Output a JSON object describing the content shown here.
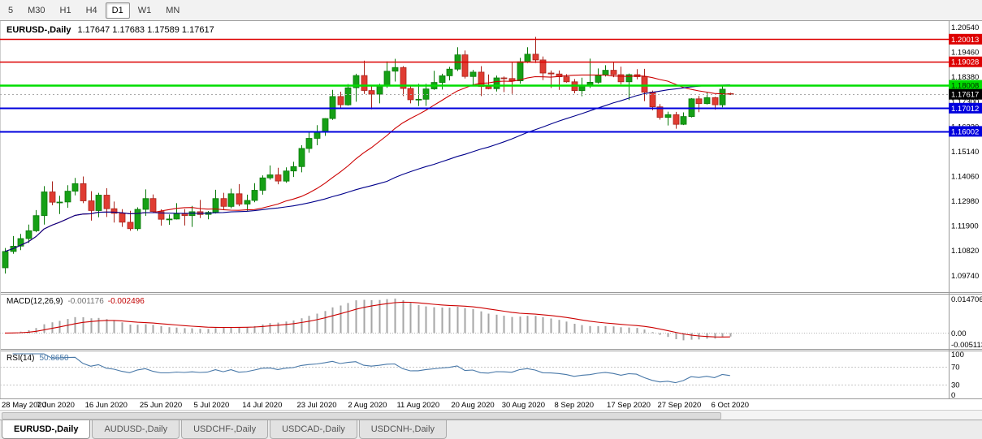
{
  "toolbar": {
    "buttons": [
      {
        "label": "5",
        "active": false
      },
      {
        "label": "M30",
        "active": false
      },
      {
        "label": "H1",
        "active": false
      },
      {
        "label": "H4",
        "active": false
      },
      {
        "label": "D1",
        "active": true
      },
      {
        "label": "W1",
        "active": false
      },
      {
        "label": "MN",
        "active": false
      }
    ]
  },
  "chart": {
    "symbol_label": "EURUSD-,Daily",
    "ohlc_label": "1.17647 1.17683 1.17589 1.17617"
  },
  "price_scale": {
    "badges": [
      {
        "text": "1.20013",
        "price": 1.20013,
        "bg": "#dd0000",
        "fg": "#ffffff"
      },
      {
        "text": "1.19028",
        "price": 1.19028,
        "bg": "#dd0000",
        "fg": "#ffffff"
      },
      {
        "text": "1.18008",
        "price": 1.18008,
        "bg": "#00dd00",
        "fg": "#002b00"
      },
      {
        "text": "1.17617",
        "price": 1.17617,
        "bg": "#000000",
        "fg": "#ffffff"
      },
      {
        "text": "1.17012",
        "price": 1.17012,
        "bg": "#0000dd",
        "fg": "#ffffff"
      },
      {
        "text": "1.16002",
        "price": 1.16002,
        "bg": "#0000dd",
        "fg": "#ffffff"
      }
    ]
  },
  "chart_data": {
    "type": "candlestick",
    "title": "EURUSD-,Daily",
    "last_ohlc": {
      "open": "1.17647",
      "high": "1.17683",
      "low": "1.17589",
      "close": "1.17617"
    },
    "current_price": 1.17617,
    "candle_colors": {
      "bull": "#16a016",
      "bull_border": "#0b7a0b",
      "bear": "#e03c32",
      "bear_border": "#a8231b"
    },
    "candles": [
      [
        1.1007,
        1.1093,
        1.0982,
        1.1078
      ],
      [
        1.1078,
        1.1145,
        1.1068,
        1.1101
      ],
      [
        1.1101,
        1.1154,
        1.1084,
        1.1134
      ],
      [
        1.1134,
        1.1195,
        1.1115,
        1.1168
      ],
      [
        1.1168,
        1.1258,
        1.1162,
        1.1234
      ],
      [
        1.1234,
        1.1362,
        1.1195,
        1.1337
      ],
      [
        1.1337,
        1.1383,
        1.1279,
        1.1292
      ],
      [
        1.1292,
        1.132,
        1.1241,
        1.1293
      ],
      [
        1.1293,
        1.1366,
        1.1268,
        1.134
      ],
      [
        1.134,
        1.1398,
        1.1322,
        1.1373
      ],
      [
        1.1373,
        1.1404,
        1.1288,
        1.1298
      ],
      [
        1.1298,
        1.134,
        1.1212,
        1.1256
      ],
      [
        1.1256,
        1.1333,
        1.1227,
        1.1323
      ],
      [
        1.1323,
        1.1353,
        1.1228,
        1.1264
      ],
      [
        1.1264,
        1.1295,
        1.1204,
        1.1244
      ],
      [
        1.1244,
        1.1262,
        1.1185,
        1.1205
      ],
      [
        1.1205,
        1.1255,
        1.1168,
        1.1177
      ],
      [
        1.1177,
        1.127,
        1.1168,
        1.1261
      ],
      [
        1.1261,
        1.1348,
        1.1233,
        1.1308
      ],
      [
        1.1308,
        1.1326,
        1.1245,
        1.1252
      ],
      [
        1.1252,
        1.1261,
        1.119,
        1.1218
      ],
      [
        1.1218,
        1.1239,
        1.1194,
        1.1219
      ],
      [
        1.1219,
        1.1288,
        1.1217,
        1.1242
      ],
      [
        1.1242,
        1.1262,
        1.1191,
        1.1234
      ],
      [
        1.1234,
        1.1276,
        1.1185,
        1.1251
      ],
      [
        1.1251,
        1.1302,
        1.1223,
        1.1239
      ],
      [
        1.1239,
        1.1254,
        1.1218,
        1.1248
      ],
      [
        1.1248,
        1.1346,
        1.1243,
        1.1308
      ],
      [
        1.1308,
        1.1333,
        1.1259,
        1.1274
      ],
      [
        1.1274,
        1.1351,
        1.1266,
        1.1329
      ],
      [
        1.1329,
        1.1371,
        1.1275,
        1.1284
      ],
      [
        1.1284,
        1.1325,
        1.1255,
        1.13
      ],
      [
        1.13,
        1.1375,
        1.1292,
        1.1344
      ],
      [
        1.1344,
        1.1409,
        1.1325,
        1.1398
      ],
      [
        1.1398,
        1.1452,
        1.139,
        1.1411
      ],
      [
        1.1411,
        1.1442,
        1.137,
        1.1384
      ],
      [
        1.1384,
        1.1444,
        1.1377,
        1.1428
      ],
      [
        1.1428,
        1.1468,
        1.1402,
        1.1447
      ],
      [
        1.1447,
        1.154,
        1.1422,
        1.1526
      ],
      [
        1.1526,
        1.1601,
        1.1507,
        1.157
      ],
      [
        1.157,
        1.1627,
        1.154,
        1.1596
      ],
      [
        1.1596,
        1.1658,
        1.1581,
        1.1656
      ],
      [
        1.1656,
        1.1781,
        1.165,
        1.1752
      ],
      [
        1.1752,
        1.1773,
        1.17,
        1.1716
      ],
      [
        1.1716,
        1.1806,
        1.1712,
        1.179
      ],
      [
        1.179,
        1.1851,
        1.1729,
        1.1843
      ],
      [
        1.1843,
        1.1908,
        1.1763,
        1.1778
      ],
      [
        1.1778,
        1.1797,
        1.1696,
        1.1762
      ],
      [
        1.1762,
        1.1807,
        1.1722,
        1.1802
      ],
      [
        1.1802,
        1.1905,
        1.179,
        1.1862
      ],
      [
        1.1862,
        1.1916,
        1.1817,
        1.1878
      ],
      [
        1.1878,
        1.1884,
        1.1754,
        1.1787
      ],
      [
        1.1787,
        1.1798,
        1.1722,
        1.1738
      ],
      [
        1.1738,
        1.1807,
        1.171,
        1.174
      ],
      [
        1.174,
        1.1807,
        1.1711,
        1.1785
      ],
      [
        1.1785,
        1.1864,
        1.1781,
        1.1813
      ],
      [
        1.1813,
        1.1851,
        1.1782,
        1.1842
      ],
      [
        1.1842,
        1.1881,
        1.1822,
        1.1871
      ],
      [
        1.1871,
        1.1966,
        1.1863,
        1.1933
      ],
      [
        1.1933,
        1.1952,
        1.183,
        1.1839
      ],
      [
        1.1839,
        1.1868,
        1.1803,
        1.1858
      ],
      [
        1.1858,
        1.1884,
        1.1754,
        1.1796
      ],
      [
        1.1796,
        1.1848,
        1.1783,
        1.1786
      ],
      [
        1.1786,
        1.1843,
        1.1774,
        1.1833
      ],
      [
        1.1833,
        1.1839,
        1.1771,
        1.183
      ],
      [
        1.183,
        1.1902,
        1.1763,
        1.182
      ],
      [
        1.182,
        1.192,
        1.1808,
        1.1903
      ],
      [
        1.1903,
        1.1966,
        1.1898,
        1.1936
      ],
      [
        1.1936,
        1.2011,
        1.1898,
        1.1911
      ],
      [
        1.1911,
        1.1926,
        1.1823,
        1.1854
      ],
      [
        1.1854,
        1.1865,
        1.1789,
        1.185
      ],
      [
        1.185,
        1.1865,
        1.1781,
        1.1838
      ],
      [
        1.1838,
        1.1849,
        1.1812,
        1.1816
      ],
      [
        1.1816,
        1.1828,
        1.1766,
        1.1778
      ],
      [
        1.1778,
        1.1834,
        1.1753,
        1.1802
      ],
      [
        1.1802,
        1.1917,
        1.1789,
        1.1814
      ],
      [
        1.1814,
        1.1874,
        1.1808,
        1.1845
      ],
      [
        1.1845,
        1.1888,
        1.1839,
        1.1866
      ],
      [
        1.1866,
        1.19,
        1.1836,
        1.1847
      ],
      [
        1.1847,
        1.1882,
        1.1805,
        1.1816
      ],
      [
        1.1816,
        1.1852,
        1.1737,
        1.1847
      ],
      [
        1.1847,
        1.1871,
        1.1827,
        1.1838
      ],
      [
        1.1838,
        1.1872,
        1.1732,
        1.1771
      ],
      [
        1.1771,
        1.1778,
        1.1692,
        1.1707
      ],
      [
        1.1707,
        1.1719,
        1.1651,
        1.1661
      ],
      [
        1.1661,
        1.1686,
        1.1626,
        1.1673
      ],
      [
        1.1673,
        1.1685,
        1.1612,
        1.1631
      ],
      [
        1.1631,
        1.1683,
        1.1628,
        1.1665
      ],
      [
        1.1665,
        1.1745,
        1.1661,
        1.1742
      ],
      [
        1.1742,
        1.1755,
        1.1684,
        1.1721
      ],
      [
        1.1721,
        1.1769,
        1.1717,
        1.1747
      ],
      [
        1.1747,
        1.1751,
        1.1695,
        1.1716
      ],
      [
        1.1716,
        1.1797,
        1.1705,
        1.1784
      ],
      [
        1.17647,
        1.17683,
        1.17589,
        1.17617
      ]
    ],
    "y_ticks": [
      {
        "text": "1.20540",
        "price": 1.2054
      },
      {
        "text": "1.19460",
        "price": 1.1946
      },
      {
        "text": "1.18380",
        "price": 1.1838
      },
      {
        "text": "1.17300",
        "price": 1.173
      },
      {
        "text": "1.16220",
        "price": 1.1622
      },
      {
        "text": "1.15140",
        "price": 1.1514
      },
      {
        "text": "1.14060",
        "price": 1.1406
      },
      {
        "text": "1.12980",
        "price": 1.1298
      },
      {
        "text": "1.11900",
        "price": 1.119
      },
      {
        "text": "1.10820",
        "price": 1.1082
      },
      {
        "text": "1.09740",
        "price": 1.0974
      }
    ],
    "x_ticks": [
      {
        "bar": 0,
        "label": "28 May 2020"
      },
      {
        "bar": 6.5,
        "label": "7 Jun 2020"
      },
      {
        "bar": 13,
        "label": "16 Jun 2020"
      },
      {
        "bar": 20,
        "label": "25 Jun 2020"
      },
      {
        "bar": 26.5,
        "label": "5 Jul 2020"
      },
      {
        "bar": 33,
        "label": "14 Jul 2020"
      },
      {
        "bar": 40,
        "label": "23 Jul 2020"
      },
      {
        "bar": 46.5,
        "label": "2 Aug 2020"
      },
      {
        "bar": 53,
        "label": "11 Aug 2020"
      },
      {
        "bar": 60,
        "label": "20 Aug 2020"
      },
      {
        "bar": 66.5,
        "label": "30 Aug 2020"
      },
      {
        "bar": 73,
        "label": "8 Sep 2020"
      },
      {
        "bar": 80,
        "label": "17 Sep 2020"
      },
      {
        "bar": 86.5,
        "label": "27 Sep 2020"
      },
      {
        "bar": 93,
        "label": "6 Oct 2020"
      }
    ],
    "horizontal_lines": [
      {
        "price": 1.20013,
        "color": "#dd0000",
        "width": 1.4
      },
      {
        "price": 1.19028,
        "color": "#dd0000",
        "width": 1.4
      },
      {
        "price": 1.18008,
        "color": "#00dd00",
        "width": 2.4
      },
      {
        "price": 1.17012,
        "color": "#0000dd",
        "width": 2
      },
      {
        "price": 1.16002,
        "color": "#0000dd",
        "width": 2
      }
    ],
    "moving_averages": [
      {
        "type": "sma",
        "period": 20,
        "color": "#cc0000"
      },
      {
        "type": "sma",
        "period": 50,
        "color": "#00008b"
      }
    ],
    "macd": {
      "label": "MACD(12,26,9)",
      "fast": 12,
      "slow": 26,
      "signal": 9,
      "value_main": "-0.001176",
      "value_signal": "-0.002496",
      "histogram_color": "#a6a6a6",
      "signal_color": "#cc0000",
      "scale": [
        {
          "text": "0.014706",
          "value": 0.014706
        },
        {
          "text": "0.00",
          "value": 0
        },
        {
          "text": "-0.005113",
          "value": -0.005113
        }
      ]
    },
    "rsi": {
      "label": "RSI(14)",
      "period": 14,
      "value": "50.8650",
      "line_color": "#4878a8",
      "levels": [
        70,
        30
      ],
      "scale": [
        {
          "text": "100",
          "value": 100
        },
        {
          "text": "70",
          "value": 70
        },
        {
          "text": "30",
          "value": 30
        },
        {
          "text": "0",
          "value": 0
        }
      ]
    }
  },
  "tabs": {
    "items": [
      {
        "label": "EURUSD-,Daily",
        "active": true
      },
      {
        "label": "AUDUSD-,Daily",
        "active": false
      },
      {
        "label": "USDCHF-,Daily",
        "active": false
      },
      {
        "label": "USDCAD-,Daily",
        "active": false
      },
      {
        "label": "USDCNH-,Daily",
        "active": false
      }
    ]
  }
}
